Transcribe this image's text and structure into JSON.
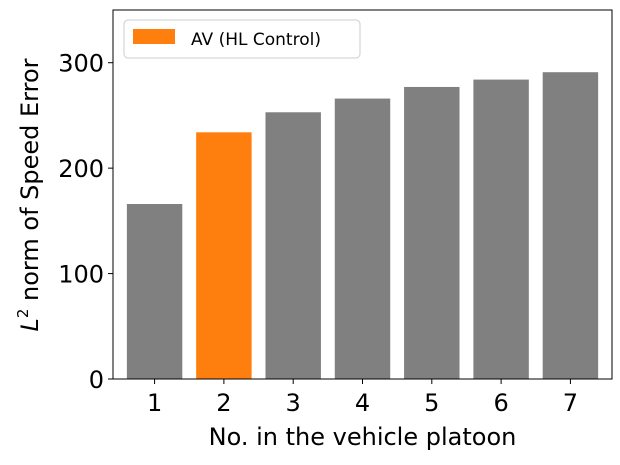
{
  "chart_data": {
    "type": "bar",
    "categories": [
      "1",
      "2",
      "3",
      "4",
      "5",
      "6",
      "7"
    ],
    "values": [
      166,
      234,
      253,
      266,
      277,
      284,
      291
    ],
    "highlight_index": 1,
    "bar_color": "#808080",
    "highlight_color": "#ff7f0e",
    "xlabel": "No. in the vehicle platoon",
    "ylabel_prefix": "L",
    "ylabel_superscript": "2",
    "ylabel_suffix": " norm of Speed Error",
    "ylim": [
      0,
      350
    ],
    "yticks": [
      0,
      100,
      200,
      300
    ],
    "grid": false,
    "legend": {
      "position": "top-left",
      "entries": [
        {
          "label": "AV (HL Control)",
          "color": "#ff7f0e"
        }
      ]
    }
  }
}
